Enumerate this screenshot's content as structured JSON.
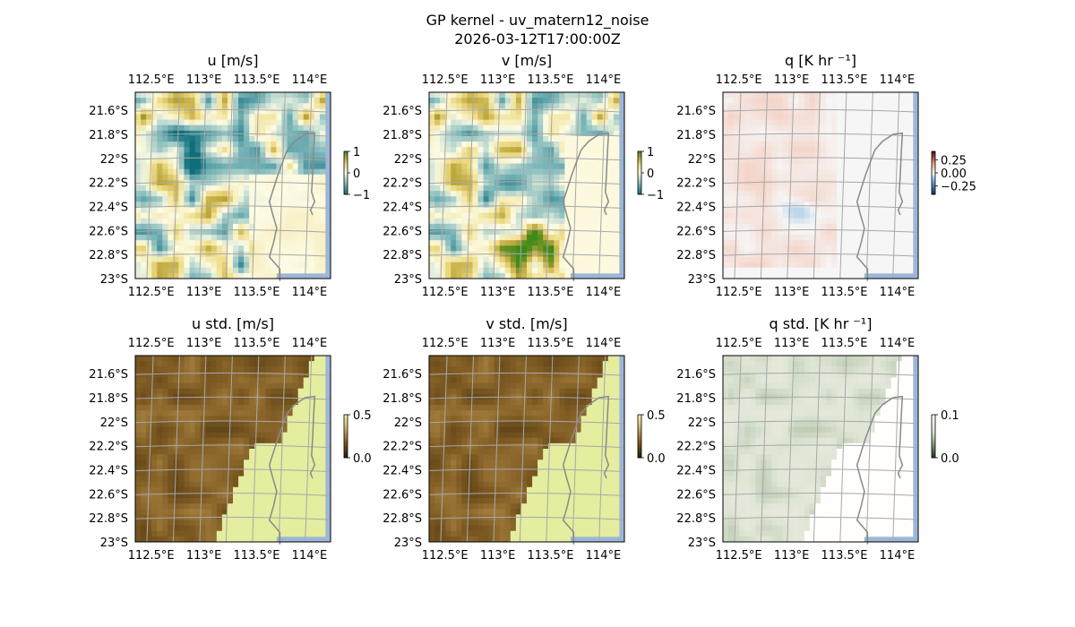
{
  "figure": {
    "title": "GP kernel - uv_matern12_noise",
    "subtitle": "2026-03-12T17:00:00Z"
  },
  "chart_data": [
    {
      "type": "heatmap",
      "title": "u [m/s]",
      "field": "u",
      "xlim": [
        112.35,
        114.2
      ],
      "ylim": [
        -23.0,
        -21.45
      ],
      "xticks": [
        "112.5°E",
        "113°E",
        "113.5°E",
        "114°E"
      ],
      "yticks": [
        "21.6°S",
        "21.8°S",
        "22°S",
        "22.2°S",
        "22.4°S",
        "22.6°S",
        "22.8°S",
        "23°S"
      ],
      "colorbar": {
        "ticks": [
          "1",
          "0",
          "−1"
        ],
        "range": [
          -1,
          1
        ],
        "colormap": "diverging-teal-white-green"
      },
      "grid": true,
      "coastline": true
    },
    {
      "type": "heatmap",
      "title": "v [m/s]",
      "field": "v",
      "xlim": [
        112.35,
        114.2
      ],
      "ylim": [
        -23.0,
        -21.45
      ],
      "xticks": [
        "112.5°E",
        "113°E",
        "113.5°E",
        "114°E"
      ],
      "yticks": [
        "21.6°S",
        "21.8°S",
        "22°S",
        "22.2°S",
        "22.4°S",
        "22.6°S",
        "22.8°S",
        "23°S"
      ],
      "colorbar": {
        "ticks": [
          "1",
          "0",
          "−1"
        ],
        "range": [
          -1,
          1
        ],
        "colormap": "diverging-teal-white-green"
      },
      "grid": true,
      "coastline": true
    },
    {
      "type": "heatmap",
      "title": "q [K hr ⁻¹]",
      "field": "q",
      "xlim": [
        112.35,
        114.2
      ],
      "ylim": [
        -23.0,
        -21.45
      ],
      "xticks": [
        "112.5°E",
        "113°E",
        "113.5°E",
        "114°E"
      ],
      "yticks": [
        "21.6°S",
        "21.8°S",
        "22°S",
        "22.2°S",
        "22.4°S",
        "22.6°S",
        "22.8°S",
        "23°S"
      ],
      "colorbar": {
        "ticks": [
          "0.25",
          "0.00",
          "−0.25"
        ],
        "range": [
          -0.35,
          0.35
        ],
        "colormap": "diverging-blue-white-red"
      },
      "grid": true,
      "coastline": true
    },
    {
      "type": "heatmap",
      "title": "u std. [m/s]",
      "field": "u_std",
      "xlim": [
        112.35,
        114.2
      ],
      "ylim": [
        -23.0,
        -21.45
      ],
      "xticks": [
        "112.5°E",
        "113°E",
        "113.5°E",
        "114°E"
      ],
      "yticks": [
        "21.6°S",
        "21.8°S",
        "22°S",
        "22.2°S",
        "22.4°S",
        "22.6°S",
        "22.8°S",
        "23°S"
      ],
      "colorbar": {
        "ticks": [
          "0.5",
          "0.0"
        ],
        "range": [
          0,
          0.5
        ],
        "colormap": "sequential-brown-yellow"
      },
      "grid": true,
      "coastline": true
    },
    {
      "type": "heatmap",
      "title": "v std. [m/s]",
      "field": "v_std",
      "xlim": [
        112.35,
        114.2
      ],
      "ylim": [
        -23.0,
        -21.45
      ],
      "xticks": [
        "112.5°E",
        "113°E",
        "113.5°E",
        "114°E"
      ],
      "yticks": [
        "21.6°S",
        "21.8°S",
        "22°S",
        "22.2°S",
        "22.4°S",
        "22.6°S",
        "22.8°S",
        "23°S"
      ],
      "colorbar": {
        "ticks": [
          "0.5",
          "0.0"
        ],
        "range": [
          0,
          0.5
        ],
        "colormap": "sequential-brown-yellow"
      },
      "grid": true,
      "coastline": true
    },
    {
      "type": "heatmap",
      "title": "q std. [K hr ⁻¹]",
      "field": "q_std",
      "xlim": [
        112.35,
        114.2
      ],
      "ylim": [
        -23.0,
        -21.45
      ],
      "xticks": [
        "112.5°E",
        "113°E",
        "113.5°E",
        "114°E"
      ],
      "yticks": [
        "21.6°S",
        "21.8°S",
        "22°S",
        "22.2°S",
        "22.4°S",
        "22.6°S",
        "22.8°S",
        "23°S"
      ],
      "colorbar": {
        "ticks": [
          "0.1",
          "0.0"
        ],
        "range": [
          0,
          0.12
        ],
        "colormap": "sequential-green-pink"
      },
      "grid": true,
      "coastline": true
    }
  ]
}
